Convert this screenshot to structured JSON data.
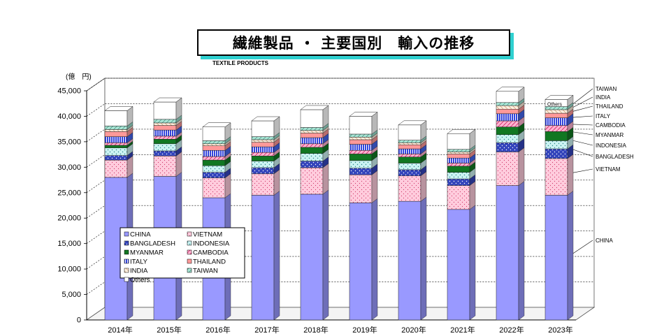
{
  "chart_data": {
    "type": "bar",
    "stacked": true,
    "title": "繊維製品 ・ 主要国別　輸入の推移",
    "subtitle": "TEXTILE PRODUCTS",
    "yunit": "(億　円)",
    "ylim": [
      0,
      45000
    ],
    "yticks": [
      "0",
      "5,000",
      "10,000",
      "15,000",
      "20,000",
      "25,000",
      "30,000",
      "35,000",
      "40,000",
      "45,000"
    ],
    "categories": [
      "2014年",
      "2015年",
      "2016年",
      "2017年",
      "2018年",
      "2019年",
      "2020年",
      "2021年",
      "2022年",
      "2023年"
    ],
    "series": [
      {
        "name": "CHINA",
        "color": "#9999ff",
        "values": [
          28000,
          28200,
          24000,
          24500,
          24700,
          23000,
          23300,
          21700,
          26400,
          24500
        ]
      },
      {
        "name": "VIETNAM",
        "color": "#ffccdd",
        "values": [
          3400,
          4000,
          3900,
          4200,
          5200,
          5500,
          5000,
          4700,
          6600,
          7200
        ]
      },
      {
        "name": "BANGLADESH",
        "color": "#3344bb",
        "values": [
          900,
          1000,
          1100,
          1200,
          1300,
          1300,
          1200,
          1300,
          1800,
          1900
        ]
      },
      {
        "name": "INDONESIA",
        "color": "#ccf3f3",
        "values": [
          1500,
          1400,
          1300,
          1300,
          1500,
          1500,
          1300,
          1300,
          1600,
          1600
        ]
      },
      {
        "name": "MYANMAR",
        "color": "#117722",
        "values": [
          500,
          900,
          1100,
          1000,
          1200,
          1300,
          1200,
          1200,
          1500,
          1800
        ]
      },
      {
        "name": "CAMBODIA",
        "color": "#ffb3d0",
        "values": [
          500,
          600,
          700,
          700,
          700,
          700,
          600,
          600,
          1200,
          1200
        ]
      },
      {
        "name": "ITALY",
        "color": "#4466ee",
        "values": [
          1200,
          1200,
          1200,
          1100,
          1200,
          1200,
          1000,
          1000,
          1400,
          1500
        ]
      },
      {
        "name": "THAILAND",
        "color": "#ff9999",
        "values": [
          1000,
          900,
          900,
          900,
          900,
          900,
          800,
          800,
          900,
          900
        ]
      },
      {
        "name": "INDIA",
        "color": "#ffeedd",
        "values": [
          400,
          500,
          400,
          500,
          500,
          500,
          400,
          400,
          700,
          700
        ]
      },
      {
        "name": "TAIWAN",
        "color": "#99ddcc",
        "values": [
          700,
          700,
          600,
          600,
          600,
          600,
          500,
          500,
          600,
          600
        ]
      },
      {
        "name": "Others",
        "color": "#ffffff",
        "values": [
          3000,
          3400,
          2700,
          3100,
          3500,
          3500,
          3000,
          3100,
          2200,
          1400
        ]
      }
    ],
    "legend": [
      "CHINA",
      "VIETNAM",
      "BANGLADESH",
      "INDONESIA",
      "MYANMAR",
      "CAMBODIA",
      "ITALY",
      "THAILAND",
      "INDIA",
      "TAIWAN",
      "Others"
    ],
    "right_labels": [
      "TAIWAN",
      "INDIA",
      "THAILAND",
      "ITALY",
      "CAMBODIA",
      "MYANMAR",
      "INDONESIA",
      "BANGLADESH",
      "VIETNAM",
      "CHINA"
    ],
    "others_label": "Others"
  }
}
